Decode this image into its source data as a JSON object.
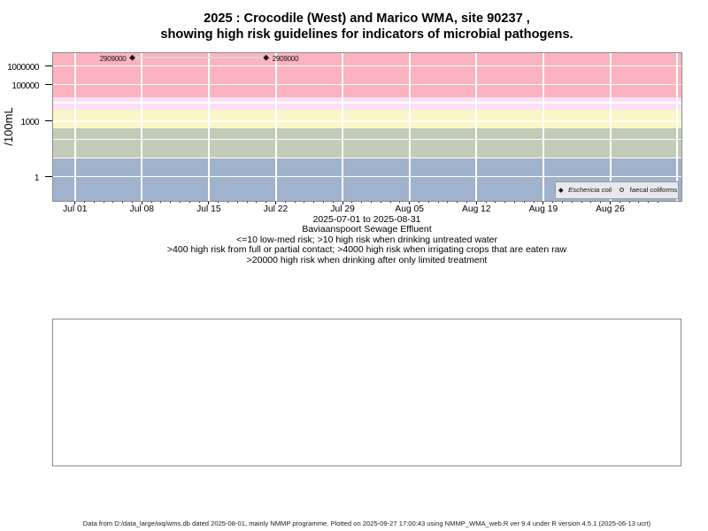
{
  "title": {
    "line1": "2025 : Crocodile (West) and Marico WMA, site 90237 ,",
    "line2": "showing high risk guidelines for indicators of microbial pathogens."
  },
  "chart_data": {
    "type": "scatter",
    "ylabel": "/100mL",
    "y_scale": "log10",
    "x_start_date": "2025-07-01",
    "x_axis_range": [
      "2025-07-01",
      "2025-08-31"
    ],
    "y_ticks": [
      {
        "value": 1000000,
        "label": "1000000"
      },
      {
        "value": 100000,
        "label": "100000"
      },
      {
        "value": 1000,
        "label": "1000"
      },
      {
        "value": 1,
        "label": "1"
      }
    ],
    "y_gridline_values": [
      1,
      10,
      100,
      1000,
      10000,
      100000,
      1000000
    ],
    "x_ticks": [
      {
        "date": "2025-07-01",
        "label": "Jul 01"
      },
      {
        "date": "2025-07-08",
        "label": "Jul 08"
      },
      {
        "date": "2025-07-15",
        "label": "Jul 15"
      },
      {
        "date": "2025-07-22",
        "label": "Jul 22"
      },
      {
        "date": "2025-07-29",
        "label": "Jul 29"
      },
      {
        "date": "2025-08-05",
        "label": "Aug 05"
      },
      {
        "date": "2025-08-12",
        "label": "Aug 12"
      },
      {
        "date": "2025-08-19",
        "label": "Aug 19"
      },
      {
        "date": "2025-08-26",
        "label": "Aug 26"
      }
    ],
    "x_gridline_dates": [
      "2025-07-01",
      "2025-07-08",
      "2025-07-15",
      "2025-07-22",
      "2025-07-29",
      "2025-08-05",
      "2025-08-12",
      "2025-08-19",
      "2025-08-26",
      "2025-09-02"
    ],
    "x_minor_ticks_daily": {
      "start": "2025-07-01",
      "end": "2025-08-31"
    },
    "risk_bands": [
      {
        "name": "high risk when drinking after only limited treatment",
        "lo": 20000,
        "hi": null,
        "color": "#FBB3C0"
      },
      {
        "name": "high risk when irrigating crops that are eaten raw",
        "lo": 4000,
        "hi": 20000,
        "color": "#FBE0F7"
      },
      {
        "name": "high risk from full or partial contact",
        "lo": 400,
        "hi": 4000,
        "color": "#FAF6C6"
      },
      {
        "name": "high risk when drinking untreated water",
        "lo": 10,
        "hi": 400,
        "color": "#C2CBB8"
      },
      {
        "name": "low-med risk",
        "lo": null,
        "hi": 10,
        "color": "#A0B3CD"
      }
    ],
    "series": [
      {
        "name": "Eschericia coli",
        "marker": "filled-diamond",
        "marker_color": "#161616",
        "line_color": "#d8d8d8",
        "points": [
          {
            "date": "2025-07-07",
            "value": 2909000,
            "label": "2909000",
            "label_side": "left"
          },
          {
            "date": "2025-07-21",
            "value": 2909000,
            "label": "2909000",
            "label_side": "right"
          }
        ]
      },
      {
        "name": "faecal coliforms",
        "marker": "open-circle",
        "marker_color": "#222222",
        "points": []
      }
    ],
    "legend": {
      "entries": [
        {
          "label": "Eschericia coli",
          "marker": "filled-diamond",
          "italic": true
        },
        {
          "label": "faecal coliforms",
          "marker": "open-circle",
          "italic": false
        }
      ]
    }
  },
  "captions": {
    "line1": "2025-07-01 to 2025-08-31",
    "line2": "Baviaanspoort Sewage Effluent",
    "line3": "<=10 low-med risk; >10 high risk when drinking untreated water",
    "line4": ">400 high risk from full or partial contact; >4000 high risk when irrigating crops that are eaten raw",
    "line5": ">20000 high risk when drinking after only limited treatment"
  },
  "footer": {
    "text": "Data from D:/data_large/wq/wms.db dated 2025-08-01, mainly NMMP programme. Plotted on 2025-09-27 17:00:43 using NMMP_WMA_web.R ver 9.4 under R version 4.5.1 (2025-06-13 ucrt)"
  }
}
